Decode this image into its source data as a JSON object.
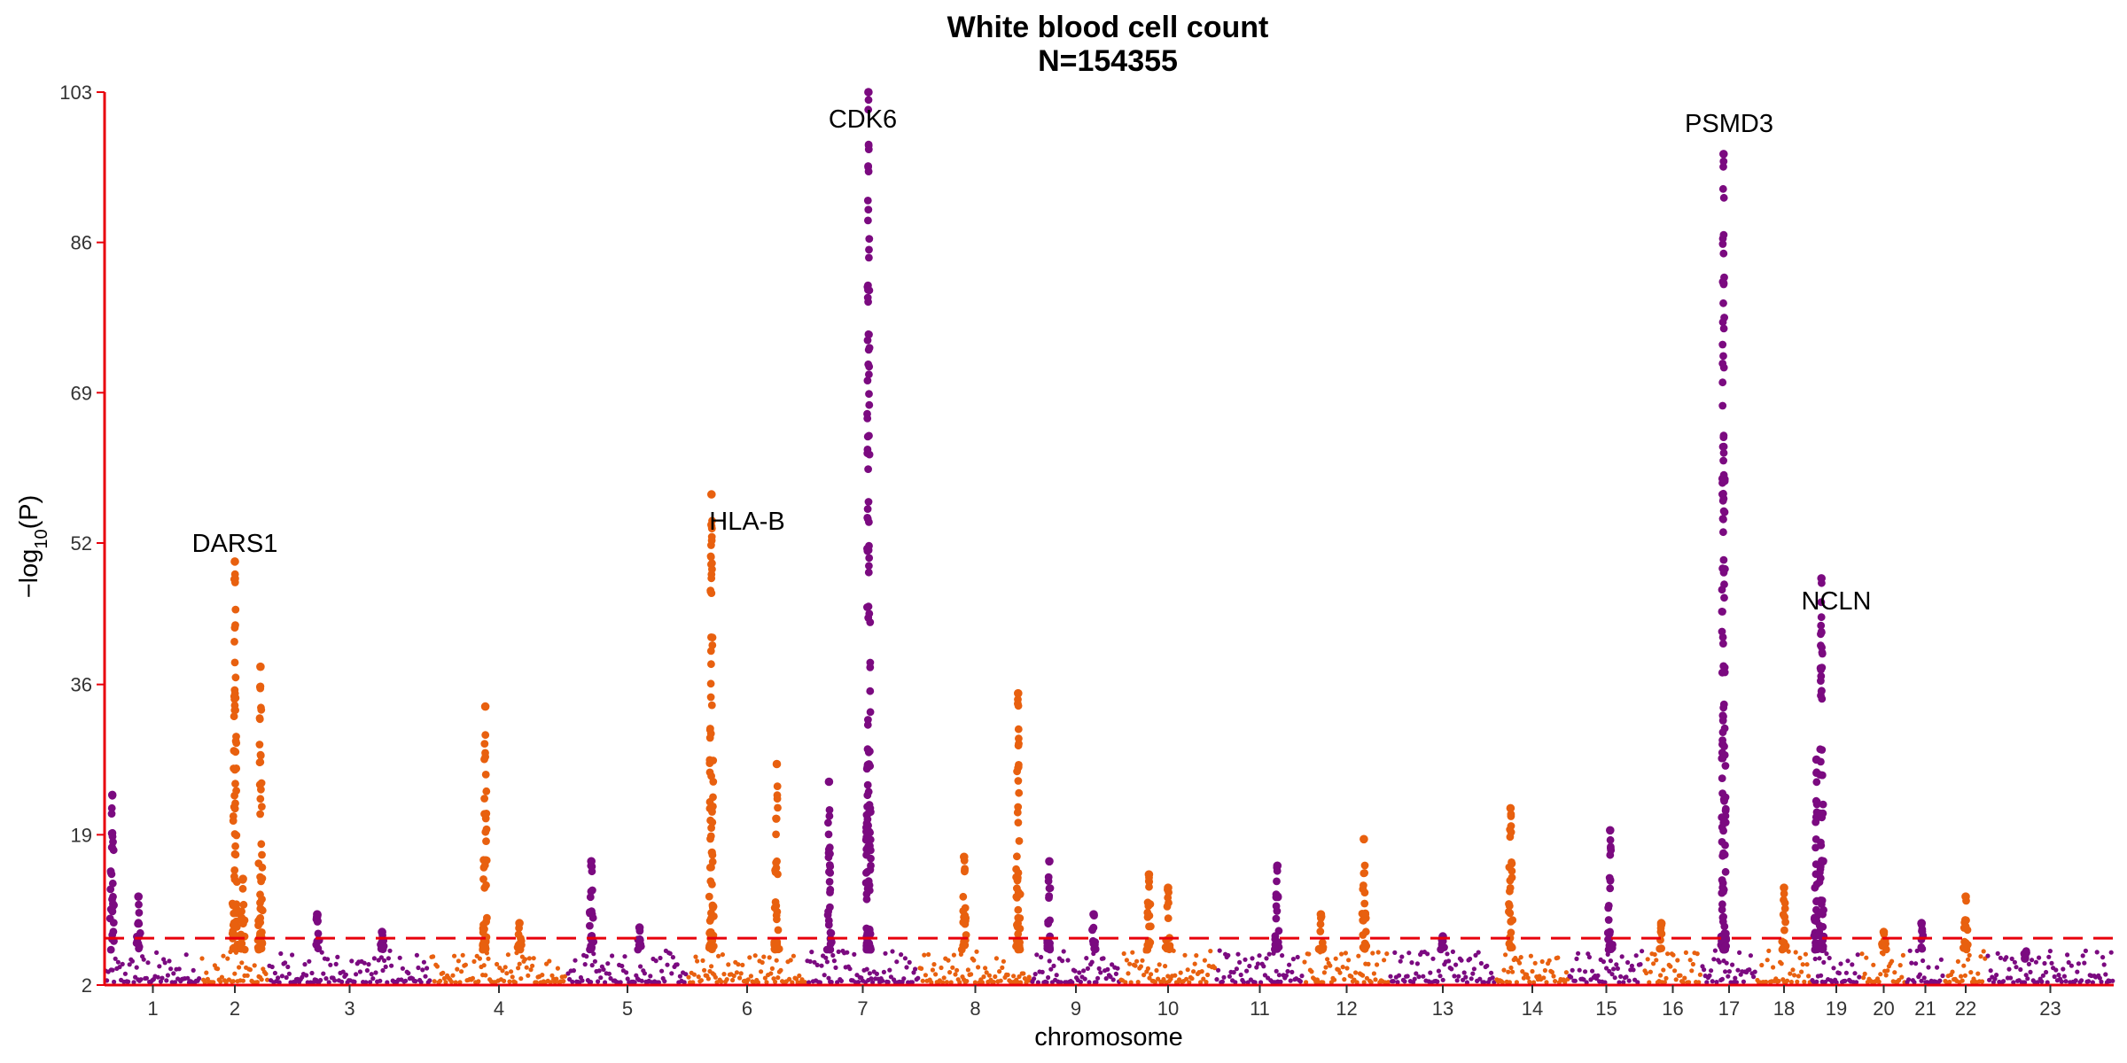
{
  "chart_data": {
    "type": "scatter",
    "subtype": "manhattan",
    "title": "White blood cell count",
    "subtitle": "N=154355",
    "xlabel": "chromosome",
    "ylabel": "−log10(P)",
    "ylabel_main": "−log",
    "ylabel_sub": "10",
    "ylabel_paren": "(P)",
    "ylim": [
      2,
      103
    ],
    "yticks": [
      "2",
      "19",
      "36",
      "52",
      "69",
      "86",
      "103"
    ],
    "significance_threshold": 7.3,
    "grid": false,
    "colors": {
      "odd_chromosome": "#7b0a80",
      "even_chromosome": "#e8600f",
      "axis": "#e8000b",
      "threshold": "#e8000b"
    },
    "chromosomes": [
      {
        "label": "1",
        "peaks": [
          [
            0.08,
            23.5
          ],
          [
            0.35,
            12.0
          ]
        ]
      },
      {
        "label": "2",
        "peaks": [
          [
            0.5,
            49.9
          ],
          [
            0.62,
            14.0
          ],
          [
            0.88,
            38.0
          ]
        ]
      },
      {
        "label": "3",
        "peaks": [
          [
            0.3,
            10.0
          ],
          [
            0.7,
            8.0
          ]
        ]
      },
      {
        "label": "4",
        "peaks": [
          [
            0.4,
            33.5
          ],
          [
            0.65,
            9.0
          ]
        ]
      },
      {
        "label": "5",
        "peaks": [
          [
            0.2,
            16.0
          ],
          [
            0.6,
            8.5
          ]
        ]
      },
      {
        "label": "6",
        "peaks": [
          [
            0.2,
            57.5
          ],
          [
            0.75,
            27.0
          ]
        ]
      },
      {
        "label": "7",
        "peaks": [
          [
            0.2,
            25.0
          ],
          [
            0.55,
            103.0
          ]
        ]
      },
      {
        "label": "8",
        "peaks": [
          [
            0.4,
            16.5
          ],
          [
            0.88,
            35.0
          ]
        ]
      },
      {
        "label": "9",
        "peaks": [
          [
            0.2,
            16.0
          ],
          [
            0.7,
            10.0
          ]
        ]
      },
      {
        "label": "10",
        "peaks": [
          [
            0.3,
            14.5
          ],
          [
            0.5,
            13.0
          ]
        ]
      },
      {
        "label": "11",
        "peaks": [
          [
            0.7,
            15.5
          ]
        ]
      },
      {
        "label": "12",
        "peaks": [
          [
            0.2,
            10.0
          ],
          [
            0.7,
            18.5
          ]
        ]
      },
      {
        "label": "13",
        "peaks": [
          [
            0.5,
            7.5
          ]
        ]
      },
      {
        "label": "14",
        "peaks": [
          [
            0.2,
            22.0
          ]
        ]
      },
      {
        "label": "15",
        "peaks": [
          [
            0.55,
            19.5
          ]
        ]
      },
      {
        "label": "16",
        "peaks": [
          [
            0.3,
            9.0
          ]
        ]
      },
      {
        "label": "17",
        "peaks": [
          [
            0.4,
            96.0
          ]
        ]
      },
      {
        "label": "18",
        "peaks": [
          [
            0.5,
            13.0
          ]
        ]
      },
      {
        "label": "19",
        "peaks": [
          [
            0.1,
            27.5
          ],
          [
            0.2,
            48.0
          ]
        ]
      },
      {
        "label": "20",
        "peaks": [
          [
            0.5,
            8.0
          ]
        ]
      },
      {
        "label": "21",
        "peaks": [
          [
            0.4,
            9.0
          ]
        ]
      },
      {
        "label": "22",
        "peaks": [
          [
            0.5,
            12.0
          ]
        ]
      },
      {
        "label": "23",
        "peaks": [
          [
            0.3,
            5.0
          ]
        ]
      }
    ],
    "annotations": [
      {
        "text": "DARS1",
        "chromosome": "2",
        "y": 52.0
      },
      {
        "text": "HLA-B",
        "chromosome": "6",
        "y": 54.5
      },
      {
        "text": "CDK6",
        "chromosome": "7",
        "y": 100.0
      },
      {
        "text": "PSMD3",
        "chromosome": "17",
        "y": 99.5
      },
      {
        "text": "NCLN",
        "chromosome": "19",
        "y": 45.5
      }
    ]
  }
}
